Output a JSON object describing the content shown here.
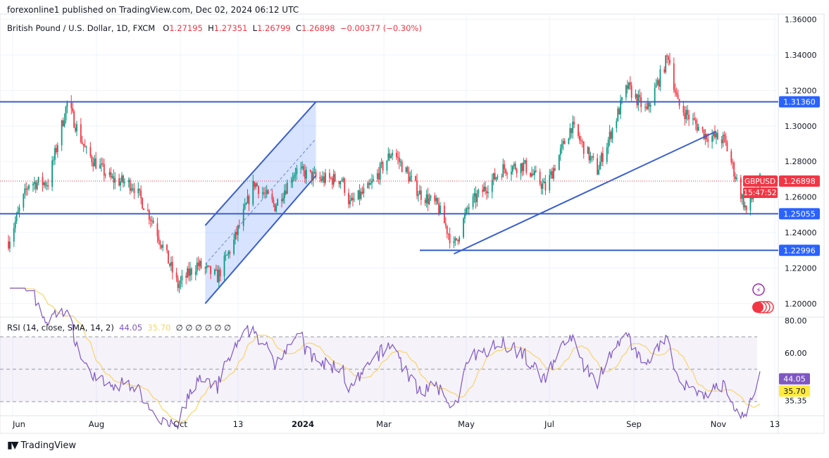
{
  "header": {
    "published": "forexonline1 published on TradingView.com, Dec 02, 2024 06:12 UTC"
  },
  "legend": {
    "symbol": "British Pound / U.S. Dollar, 1D, FXCM",
    "o_label": "O",
    "o": "1.27195",
    "h_label": "H",
    "h": "1.27351",
    "l_label": "L",
    "l": "1.26799",
    "c_label": "C",
    "c": "1.26898",
    "change": "−0.00377 (−0.30%)"
  },
  "rsi_legend": {
    "label": "RSI (14, close, SMA, 14, 2)",
    "rsi": "44.05",
    "sma": "35.70",
    "extra": "∅ ∅ ∅ ∅ ∅ ∅"
  },
  "footer": {
    "brand": "TradingView"
  },
  "colors": {
    "up": "#089981",
    "down": "#f23645",
    "line": "#2962ff",
    "rsi": "#7e57c2",
    "sma": "#f7d56b",
    "badge_blue": "#2962ff",
    "badge_red": "#f23645"
  },
  "chart_data": [
    {
      "type": "candlestick",
      "symbol": "GBPUSD",
      "timeframe": "1D",
      "ylim": [
        1.19,
        1.365
      ],
      "price_ticks": [
        "1.36000",
        "1.34000",
        "1.32000",
        "1.30000",
        "1.28000",
        "1.26000",
        "1.24000",
        "1.22000",
        "1.20000"
      ],
      "time_ticks": [
        "Jun",
        "Aug",
        "Oct",
        "13",
        "2024",
        "Mar",
        "May",
        "Jul",
        "Sep",
        "Nov",
        "13"
      ],
      "approx_close_path": [
        [
          "2023-06-01",
          1.235
        ],
        [
          "2023-06-16",
          1.268
        ],
        [
          "2023-06-30",
          1.268
        ],
        [
          "2023-07-14",
          1.313
        ],
        [
          "2023-07-28",
          1.285
        ],
        [
          "2023-08-15",
          1.27
        ],
        [
          "2023-08-31",
          1.267
        ],
        [
          "2023-09-15",
          1.246
        ],
        [
          "2023-10-03",
          1.21
        ],
        [
          "2023-10-17",
          1.222
        ],
        [
          "2023-11-01",
          1.215
        ],
        [
          "2023-11-13",
          1.235
        ],
        [
          "2023-11-28",
          1.268
        ],
        [
          "2023-12-13",
          1.255
        ],
        [
          "2023-12-28",
          1.275
        ],
        [
          "2024-01-15",
          1.27
        ],
        [
          "2024-01-31",
          1.27
        ],
        [
          "2024-02-06",
          1.256
        ],
        [
          "2024-02-20",
          1.265
        ],
        [
          "2024-03-08",
          1.286
        ],
        [
          "2024-03-28",
          1.262
        ],
        [
          "2024-04-10",
          1.255
        ],
        [
          "2024-04-22",
          1.232
        ],
        [
          "2024-05-03",
          1.255
        ],
        [
          "2024-05-28",
          1.276
        ],
        [
          "2024-06-12",
          1.278
        ],
        [
          "2024-06-28",
          1.265
        ],
        [
          "2024-07-17",
          1.3
        ],
        [
          "2024-08-05",
          1.275
        ],
        [
          "2024-08-27",
          1.322
        ],
        [
          "2024-09-10",
          1.308
        ],
        [
          "2024-09-26",
          1.34
        ],
        [
          "2024-10-03",
          1.312
        ],
        [
          "2024-10-23",
          1.295
        ],
        [
          "2024-11-06",
          1.292
        ],
        [
          "2024-11-22",
          1.252
        ],
        [
          "2024-12-02",
          1.269
        ]
      ],
      "last_price": {
        "label": "GBPUSD",
        "price": "1.26898",
        "countdown": "15:47:52"
      },
      "levels": [
        {
          "price": 1.3136,
          "label": "1.31360"
        },
        {
          "price": 1.25055,
          "label": "1.25055"
        },
        {
          "price": 1.22996,
          "label": "1.22996"
        }
      ],
      "channel": {
        "start": "2023-10-23",
        "end": "2024-01-12",
        "lower": [
          1.2,
          1.272
        ],
        "upper": [
          1.244,
          1.3136
        ]
      },
      "trendline": {
        "start": "2024-04-22",
        "end": "2024-10-31",
        "prices": [
          1.228,
          1.297
        ]
      }
    },
    {
      "type": "line",
      "title": "RSI (14, close, SMA, 14, 2)",
      "ylim": [
        25,
        85
      ],
      "ticks": [
        "80.00",
        "60.00"
      ],
      "bands": [
        30,
        70
      ],
      "series": [
        {
          "name": "RSI",
          "last": 44.05
        },
        {
          "name": "SMA",
          "last": 35.7
        }
      ],
      "marked_level": "35.35"
    }
  ]
}
